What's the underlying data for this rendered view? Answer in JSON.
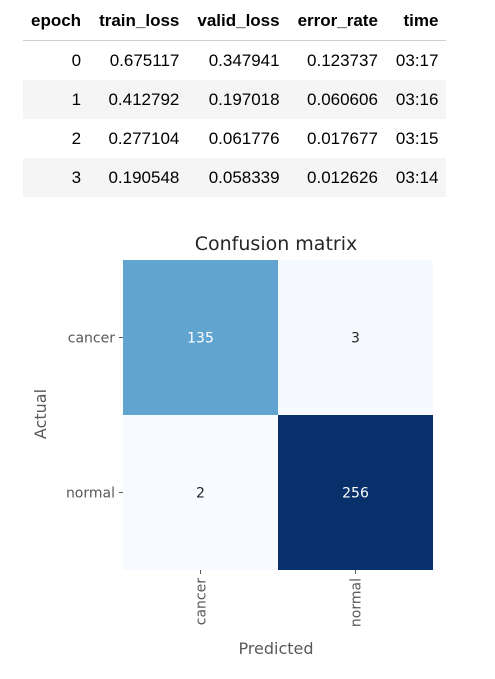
{
  "training_table": {
    "headers": [
      "epoch",
      "train_loss",
      "valid_loss",
      "error_rate",
      "time"
    ],
    "rows": [
      [
        "0",
        "0.675117",
        "0.347941",
        "0.123737",
        "03:17"
      ],
      [
        "1",
        "0.412792",
        "0.197018",
        "0.060606",
        "03:16"
      ],
      [
        "2",
        "0.277104",
        "0.061776",
        "0.017677",
        "03:15"
      ],
      [
        "3",
        "0.190548",
        "0.058339",
        "0.012626",
        "03:14"
      ]
    ]
  },
  "chart_data": {
    "type": "heatmap",
    "title": "Confusion matrix",
    "xlabel": "Predicted",
    "ylabel": "Actual",
    "x_categories": [
      "cancer",
      "normal"
    ],
    "y_categories": [
      "cancer",
      "normal"
    ],
    "matrix": [
      [
        135,
        3
      ],
      [
        2,
        256
      ]
    ],
    "colormap": "Blues",
    "colors": {
      "low": "#f7fbff",
      "mid": "#64aad4",
      "high": "#08306b",
      "text_dark": "#262626",
      "text_light": "#ffffff"
    }
  }
}
